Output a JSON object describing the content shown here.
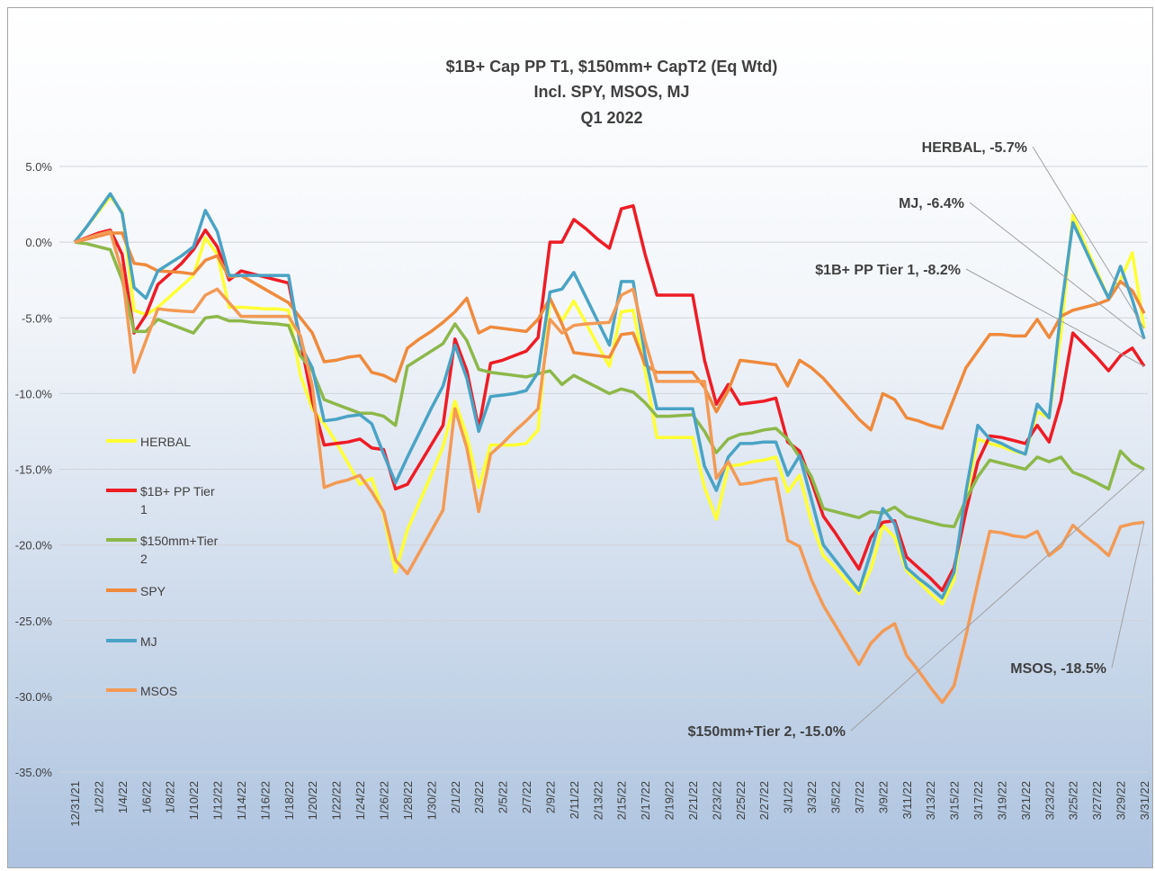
{
  "chart_data": {
    "type": "line",
    "title": "$1B+ Cap PP T1, $150mm+ CapT2  (Eq Wtd)",
    "subtitle": [
      "Incl. SPY, MSOS, MJ",
      "Q1 2022"
    ],
    "categories": [
      "12/31/21",
      null,
      "1/2/22",
      null,
      "1/4/22",
      null,
      "1/6/22",
      null,
      "1/8/22",
      null,
      "1/10/22",
      null,
      "1/12/22",
      null,
      "1/14/22",
      null,
      "1/16/22",
      null,
      "1/18/22",
      null,
      "1/20/22",
      null,
      "1/22/22",
      null,
      "1/24/22",
      null,
      "1/26/22",
      null,
      "1/28/22",
      null,
      "1/30/22",
      null,
      "2/1/22",
      null,
      "2/3/22",
      null,
      "2/5/22",
      null,
      "2/7/22",
      null,
      "2/9/22",
      null,
      "2/11/22",
      null,
      "2/13/22",
      null,
      "2/15/22",
      null,
      "2/17/22",
      null,
      "2/19/22",
      null,
      "2/21/22",
      null,
      "2/23/22",
      null,
      "2/25/22",
      null,
      "2/27/22",
      null,
      "3/1/22",
      null,
      "3/3/22",
      null,
      "3/5/22",
      null,
      "3/7/22",
      null,
      "3/9/22",
      null,
      "3/11/22",
      null,
      "3/13/22",
      null,
      "3/15/22",
      null,
      "3/17/22",
      null,
      "3/19/22",
      null,
      "3/21/22",
      null,
      "3/23/22",
      null,
      "3/25/22",
      null,
      "3/27/22",
      null,
      "3/29/22",
      null,
      "3/31/22"
    ],
    "ylim": [
      -35,
      5
    ],
    "yticks": [
      {
        "value": 5,
        "label": "5.0%"
      },
      {
        "value": 0,
        "label": "0.0%"
      },
      {
        "value": -5,
        "label": "-5.0%"
      },
      {
        "value": -10,
        "label": "-10.0%"
      },
      {
        "value": -15,
        "label": "-15.0%"
      },
      {
        "value": -20,
        "label": "-20.0%"
      },
      {
        "value": -25,
        "label": "-25.0%"
      },
      {
        "value": -30,
        "label": "-30.0%"
      },
      {
        "value": -35,
        "label": "-35.0%"
      }
    ],
    "grid": true,
    "legend": "left",
    "series": [
      {
        "name": "HERBAL",
        "color": "#ffff33",
        "values": [
          0,
          1,
          2,
          3,
          2,
          -4.5,
          -4.8,
          -4.3,
          -3.6,
          -2.9,
          -2.2,
          0.3,
          -0.8,
          -4.3,
          -4.3,
          -4.35,
          -4.4,
          -4.4,
          -4.5,
          -8.8,
          -11,
          -12,
          -13.2,
          -14.6,
          -16,
          -15.6,
          -18,
          -21.8,
          -19,
          -17.2,
          -15.4,
          -13.5,
          -10.5,
          -12.8,
          -16.2,
          -13.4,
          -13.4,
          -13.4,
          -13.3,
          -12.4,
          -3.8,
          -5.2,
          -3.9,
          -5.3,
          -6.8,
          -8.2,
          -4.6,
          -4.5,
          -8.5,
          -12.9,
          -12.9,
          -12.9,
          -12.9,
          -16.2,
          -18.3,
          -14.8,
          -14.7,
          -14.5,
          -14.4,
          -14.2,
          -16.5,
          -15.4,
          -18.5,
          -20.7,
          -21.5,
          -22.4,
          -23.2,
          -21.6,
          -18.7,
          -19.5,
          -21.7,
          -22.4,
          -23.2,
          -23.9,
          -22.3,
          -17,
          -13,
          -13.3,
          -13.5,
          -13.8,
          -14,
          -11.2,
          -11.6,
          -6,
          1.8,
          -0.1,
          -1.9,
          -3.7,
          -2.5,
          -0.7,
          -5.7
        ],
        "value_labels": [
          null,
          null,
          null,
          null,
          null,
          null,
          null,
          null,
          null,
          null,
          null,
          null,
          null,
          null,
          null,
          null,
          null,
          null,
          null,
          null,
          null,
          null,
          null,
          null,
          null,
          null,
          null,
          null,
          null,
          null,
          null,
          null,
          null,
          null,
          null,
          null,
          null,
          null,
          null,
          null,
          null,
          null,
          null,
          null,
          null,
          null,
          null,
          null,
          null,
          null,
          null,
          null,
          null,
          null,
          null,
          null,
          null,
          null,
          null,
          null,
          null,
          null,
          null,
          null,
          null,
          null,
          null,
          null,
          null,
          null,
          null,
          null,
          null,
          null,
          null,
          null,
          null,
          null,
          null,
          null,
          null,
          null,
          null,
          null,
          null,
          null,
          null,
          null,
          null,
          null,
          "HERBAL, -5.7%"
        ]
      },
      {
        "name": "$1B+ PP Tier 1",
        "color": "#ee1c25",
        "values": [
          0,
          0.3,
          0.6,
          0.8,
          -0.8,
          -6,
          -4.8,
          -2.8,
          -2.1,
          -1.4,
          -0.5,
          0.8,
          -0.3,
          -2.5,
          -1.9,
          -2.1,
          -2.3,
          -2.5,
          -2.7,
          -6.5,
          -10.5,
          -13.4,
          -13.3,
          -13.2,
          -13,
          -13.6,
          -13.7,
          -16.3,
          -16,
          -14.7,
          -13.4,
          -12.1,
          -6.4,
          -8.5,
          -12.3,
          -8,
          -7.8,
          -7.5,
          -7.2,
          -6.3,
          0,
          0,
          1.5,
          0.9,
          0.2,
          -0.4,
          2.2,
          2.4,
          -0.8,
          -3.5,
          -3.5,
          -3.5,
          -3.5,
          -7.8,
          -10.7,
          -9.4,
          -10.7,
          -10.6,
          -10.5,
          -10.3,
          -13.2,
          -13.8,
          -15.8,
          -18.1,
          -19.2,
          -20.4,
          -21.6,
          -19.5,
          -18.5,
          -18.4,
          -20.8,
          -21.5,
          -22.2,
          -23,
          -21.5,
          -17.8,
          -14.5,
          -12.8,
          -12.9,
          -13.1,
          -13.3,
          -12.1,
          -13.2,
          -10.5,
          -6,
          -6.8,
          -7.6,
          -8.5,
          -7.5,
          -7,
          -8.2
        ],
        "value_labels": [
          null,
          null,
          null,
          null,
          null,
          null,
          null,
          null,
          null,
          null,
          null,
          null,
          null,
          null,
          null,
          null,
          null,
          null,
          null,
          null,
          null,
          null,
          null,
          null,
          null,
          null,
          null,
          null,
          null,
          null,
          null,
          null,
          null,
          null,
          null,
          null,
          null,
          null,
          null,
          null,
          null,
          null,
          null,
          null,
          null,
          null,
          null,
          null,
          null,
          null,
          null,
          null,
          null,
          null,
          null,
          null,
          null,
          null,
          null,
          null,
          null,
          null,
          null,
          null,
          null,
          null,
          null,
          null,
          null,
          null,
          null,
          null,
          null,
          null,
          null,
          null,
          null,
          null,
          null,
          null,
          null,
          null,
          null,
          null,
          null,
          null,
          null,
          null,
          null,
          null,
          "$1B+ PP Tier 1, -8.2%"
        ]
      },
      {
        "name": "$150mm+Tier 2",
        "color": "#8db84a",
        "values": [
          0,
          -0.1,
          -0.3,
          -0.5,
          -2.5,
          -5.9,
          -5.9,
          -5.1,
          -5.4,
          -5.7,
          -6,
          -5,
          -4.9,
          -5.2,
          -5.2,
          -5.3,
          -5.35,
          -5.4,
          -5.5,
          -7.5,
          -8.5,
          -10.4,
          -10.7,
          -11,
          -11.3,
          -11.3,
          -11.5,
          -12.1,
          -8.2,
          -7.7,
          -7.2,
          -6.7,
          -5.4,
          -6.5,
          -8.4,
          -8.6,
          -8.7,
          -8.8,
          -8.9,
          -8.7,
          -8.5,
          -9.4,
          -8.8,
          -9.2,
          -9.6,
          -10,
          -9.7,
          -9.9,
          -10.6,
          -11.5,
          -11.5,
          -11.45,
          -11.4,
          -12.5,
          -13.9,
          -13,
          -12.7,
          -12.6,
          -12.4,
          -12.3,
          -13,
          -14.2,
          -15.5,
          -17.6,
          -17.8,
          -18,
          -18.2,
          -17.8,
          -17.9,
          -17.5,
          -18.1,
          -18.3,
          -18.5,
          -18.7,
          -18.8,
          -17,
          -15.5,
          -14.4,
          -14.6,
          -14.8,
          -15,
          -14.2,
          -14.5,
          -14.2,
          -15.2,
          -15.5,
          -15.9,
          -16.3,
          -13.8,
          -14.6,
          -15
        ],
        "value_labels": [
          null,
          null,
          null,
          null,
          null,
          null,
          null,
          null,
          null,
          null,
          null,
          null,
          null,
          null,
          null,
          null,
          null,
          null,
          null,
          null,
          null,
          null,
          null,
          null,
          null,
          null,
          null,
          null,
          null,
          null,
          null,
          null,
          null,
          null,
          null,
          null,
          null,
          null,
          null,
          null,
          null,
          null,
          null,
          null,
          null,
          null,
          null,
          null,
          null,
          null,
          null,
          null,
          null,
          null,
          null,
          null,
          null,
          null,
          null,
          null,
          null,
          null,
          null,
          null,
          null,
          null,
          null,
          null,
          null,
          null,
          null,
          null,
          null,
          null,
          null,
          null,
          null,
          null,
          null,
          null,
          null,
          null,
          null,
          null,
          null,
          null,
          null,
          null,
          null,
          null,
          "$150mm+Tier 2, -15.0%"
        ]
      },
      {
        "name": "SPY",
        "color": "#ef8a3c",
        "values": [
          0,
          0.2,
          0.4,
          0.6,
          0.6,
          -1.4,
          -1.5,
          -1.9,
          -1.95,
          -2,
          -2.1,
          -1.2,
          -0.9,
          -2.3,
          -2.2,
          -2.65,
          -3.1,
          -3.55,
          -4,
          -5,
          -6,
          -7.9,
          -7.8,
          -7.6,
          -7.5,
          -8.6,
          -8.8,
          -9.2,
          -7,
          -6.4,
          -5.9,
          -5.3,
          -4.6,
          -3.7,
          -6,
          -5.6,
          -5.7,
          -5.8,
          -5.9,
          -5.1,
          -3.7,
          -5.4,
          -7.3,
          -7.4,
          -7.5,
          -7.6,
          -6.1,
          -6,
          -8.1,
          -8.6,
          -8.6,
          -8.6,
          -8.6,
          -9.6,
          -11.2,
          -9.8,
          -7.8,
          -7.9,
          -8,
          -8.1,
          -9.5,
          -7.8,
          -8.3,
          -9,
          -9.9,
          -10.8,
          -11.7,
          -12.4,
          -10,
          -10.4,
          -11.6,
          -11.8,
          -12.1,
          -12.3,
          -10.3,
          -8.3,
          -7.2,
          -6.1,
          -6.1,
          -6.2,
          -6.2,
          -5.1,
          -6.3,
          -4.9,
          -4.5,
          -4.3,
          -4.1,
          -3.8,
          -2.6,
          -3.2,
          -4.7
        ]
      },
      {
        "name": "MJ",
        "color": "#4aa3c5",
        "values": [
          0,
          1,
          2.1,
          3.2,
          1.9,
          -3,
          -3.7,
          -1.9,
          -1.4,
          -0.9,
          -0.3,
          2.1,
          0.7,
          -2.2,
          -2.2,
          -2.2,
          -2.2,
          -2.2,
          -2.2,
          -6.8,
          -8.3,
          -11.8,
          -11.7,
          -11.5,
          -11.4,
          -12,
          -14,
          -15.9,
          -14.2,
          -12.6,
          -11,
          -9.5,
          -6.8,
          -9,
          -12.5,
          -10.2,
          -10.1,
          -10,
          -9.8,
          -8.6,
          -3.3,
          -3.1,
          -2,
          -3.6,
          -5.2,
          -6.8,
          -2.6,
          -2.6,
          -7.5,
          -11,
          -11,
          -11,
          -11,
          -14.8,
          -16.4,
          -14.2,
          -13.3,
          -13.3,
          -13.2,
          -13.2,
          -15.4,
          -14.1,
          -17,
          -20,
          -21,
          -22,
          -23,
          -20.5,
          -17.6,
          -18.6,
          -21.5,
          -22.2,
          -22.8,
          -23.5,
          -21.8,
          -16.5,
          -12.1,
          -13,
          -13.3,
          -13.7,
          -14,
          -10.7,
          -11.6,
          -4.5,
          1.3,
          -0.4,
          -2.1,
          -3.7,
          -1.6,
          -3.8,
          -6.4
        ],
        "value_labels": [
          null,
          null,
          null,
          null,
          null,
          null,
          null,
          null,
          null,
          null,
          null,
          null,
          null,
          null,
          null,
          null,
          null,
          null,
          null,
          null,
          null,
          null,
          null,
          null,
          null,
          null,
          null,
          null,
          null,
          null,
          null,
          null,
          null,
          null,
          null,
          null,
          null,
          null,
          null,
          null,
          null,
          null,
          null,
          null,
          null,
          null,
          null,
          null,
          null,
          null,
          null,
          null,
          null,
          null,
          null,
          null,
          null,
          null,
          null,
          null,
          null,
          null,
          null,
          null,
          null,
          null,
          null,
          null,
          null,
          null,
          null,
          null,
          null,
          null,
          null,
          null,
          null,
          null,
          null,
          null,
          null,
          null,
          null,
          null,
          null,
          null,
          null,
          null,
          null,
          null,
          "MJ, -6.4%"
        ]
      },
      {
        "name": "MSOS",
        "color": "#f39a55",
        "values": [
          0,
          0.25,
          0.5,
          0.7,
          -2,
          -8.6,
          -6.5,
          -4.4,
          -4.5,
          -4.55,
          -4.6,
          -3.5,
          -3.1,
          -4,
          -4.9,
          -4.9,
          -4.9,
          -4.9,
          -4.9,
          -6.2,
          -9.5,
          -16.2,
          -15.9,
          -15.7,
          -15.4,
          -16.5,
          -17.8,
          -21,
          -21.9,
          -20.5,
          -19.1,
          -17.7,
          -11,
          -13.6,
          -17.8,
          -14,
          -13.3,
          -12.5,
          -11.8,
          -11,
          -5.1,
          -6,
          -5.5,
          -5.4,
          -5.35,
          -5.3,
          -3.5,
          -3.1,
          -6.5,
          -9.2,
          -9.2,
          -9.2,
          -9.2,
          -9.2,
          -15.6,
          -14.5,
          -16,
          -15.9,
          -15.7,
          -15.6,
          -19.7,
          -20.1,
          -22.3,
          -24,
          -25.3,
          -26.6,
          -27.9,
          -26.5,
          -25.7,
          -25.2,
          -27.3,
          -28.3,
          -29.4,
          -30.4,
          -29.3,
          -26,
          -22.5,
          -19.1,
          -19.2,
          -19.4,
          -19.5,
          -19.1,
          -20.7,
          -20.1,
          -18.7,
          -19.4,
          -20,
          -20.7,
          -18.8,
          -18.6,
          -18.5
        ],
        "value_labels": [
          null,
          null,
          null,
          null,
          null,
          null,
          null,
          null,
          null,
          null,
          null,
          null,
          null,
          null,
          null,
          null,
          null,
          null,
          null,
          null,
          null,
          null,
          null,
          null,
          null,
          null,
          null,
          null,
          null,
          null,
          null,
          null,
          null,
          null,
          null,
          null,
          null,
          null,
          null,
          null,
          null,
          null,
          null,
          null,
          null,
          null,
          null,
          null,
          null,
          null,
          null,
          null,
          null,
          null,
          null,
          null,
          null,
          null,
          null,
          null,
          null,
          null,
          null,
          null,
          null,
          null,
          null,
          null,
          null,
          null,
          null,
          null,
          null,
          null,
          null,
          null,
          null,
          null,
          null,
          null,
          null,
          null,
          null,
          null,
          null,
          null,
          null,
          null,
          null,
          null,
          "MSOS, -18.5%"
        ]
      }
    ]
  }
}
